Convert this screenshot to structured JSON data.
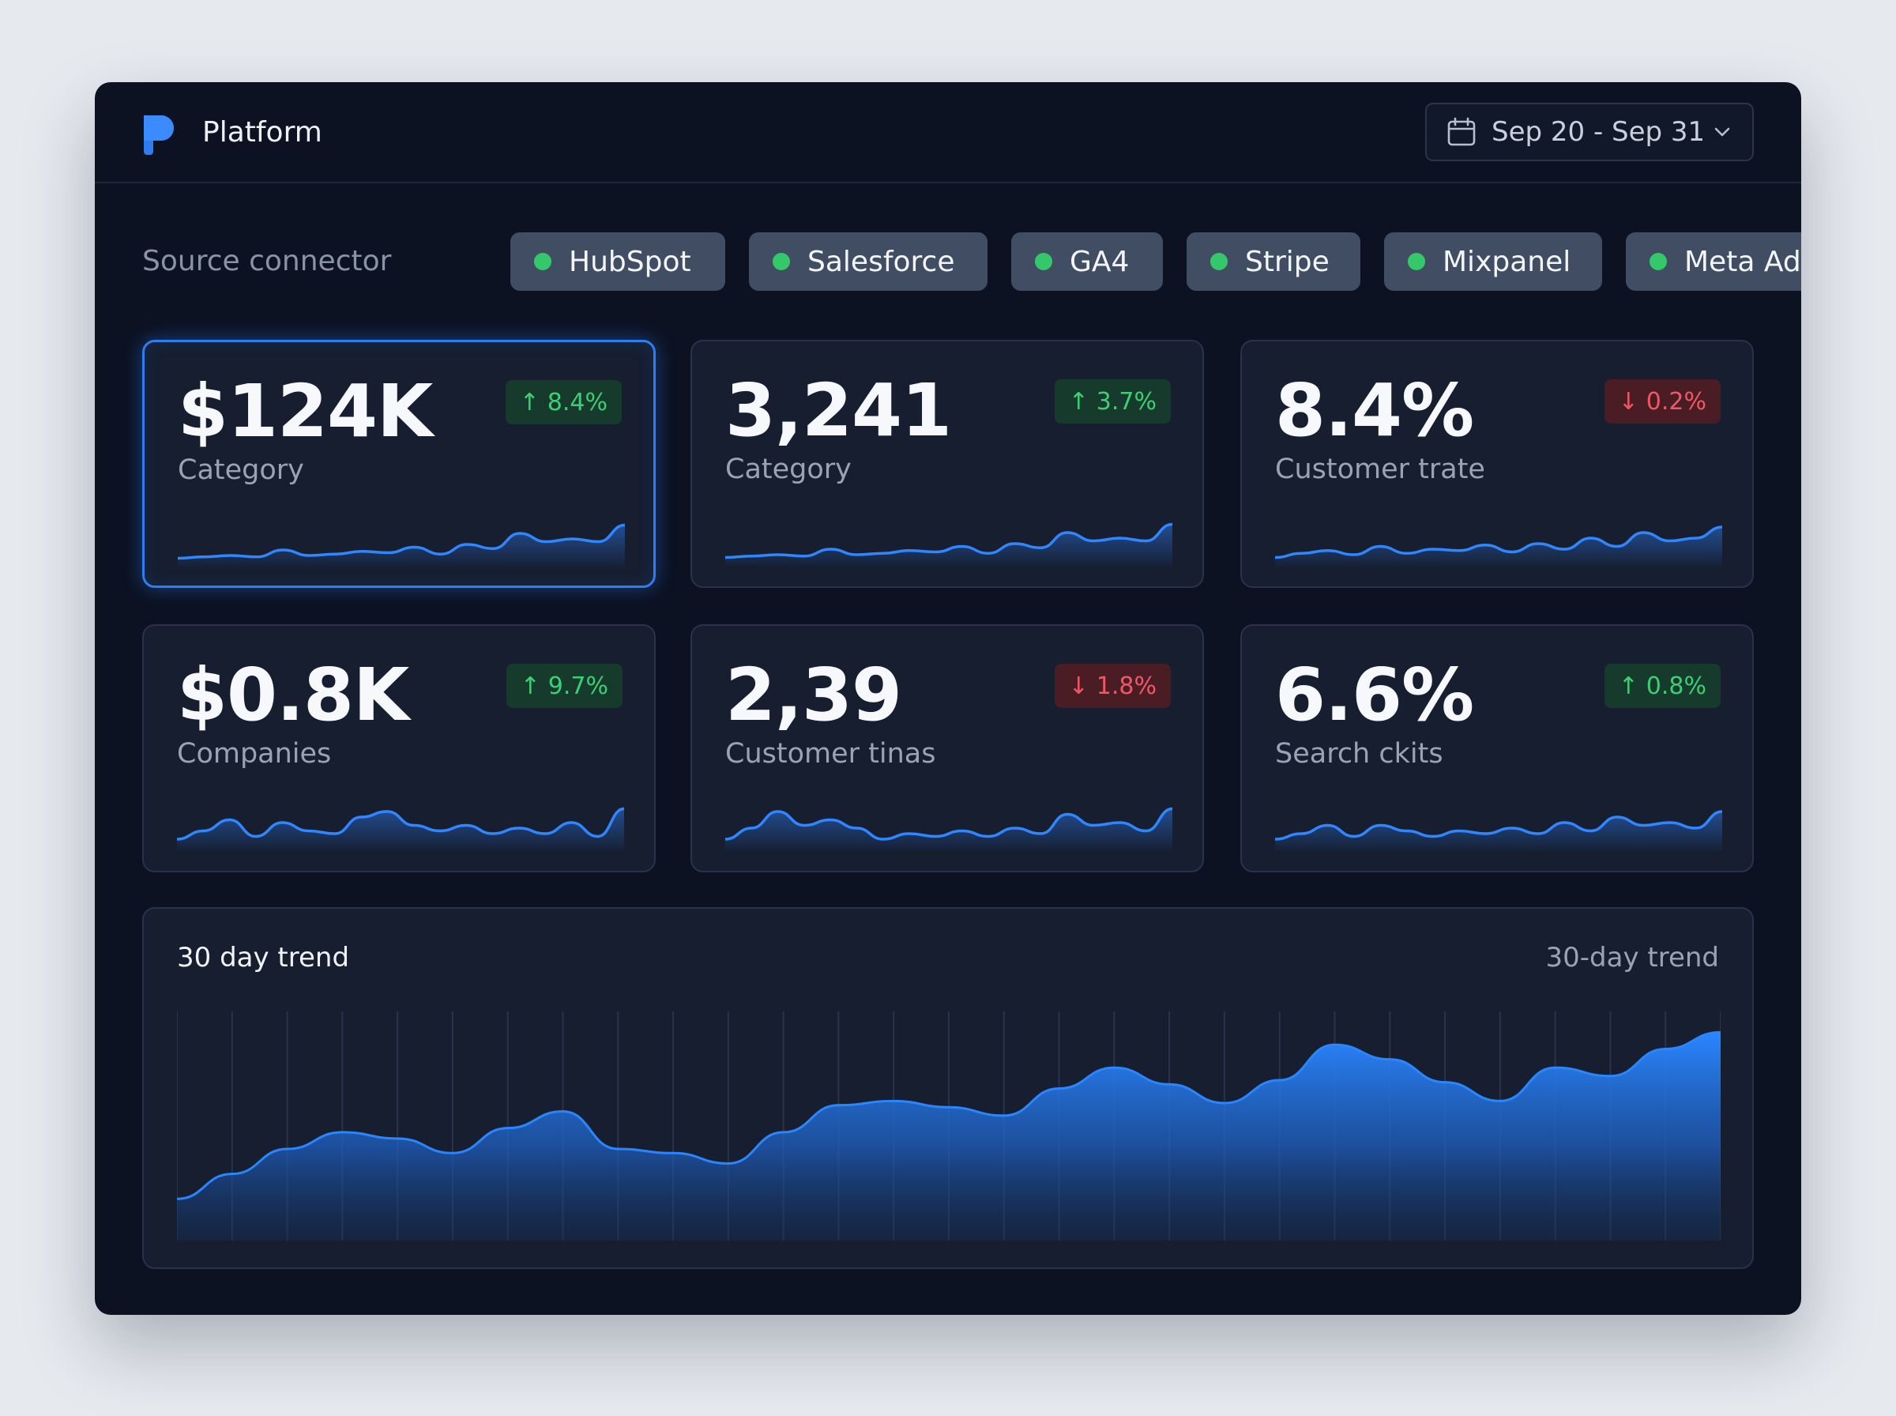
{
  "app": {
    "title": "Platform"
  },
  "date_range": {
    "label": "Sep 20 - Sep 31"
  },
  "connectors": {
    "label": "Source connector",
    "items": [
      {
        "name": "HubSpot",
        "status_color": "#35c86a"
      },
      {
        "name": "Salesforce",
        "status_color": "#35c86a"
      },
      {
        "name": "GA4",
        "status_color": "#35c86a"
      },
      {
        "name": "Stripe",
        "status_color": "#35c86a"
      },
      {
        "name": "Mixpanel",
        "status_color": "#35c86a"
      },
      {
        "name": "Meta Ads",
        "status_color": "#35c86a"
      }
    ]
  },
  "kpis": [
    {
      "value": "$124K",
      "label": "Category",
      "delta": "8.4%",
      "direction": "up",
      "selected": true,
      "spark": [
        6,
        7,
        8,
        7,
        12,
        8,
        9,
        11,
        10,
        14,
        9,
        16,
        13,
        24,
        18,
        20,
        18,
        30
      ]
    },
    {
      "value": "3,241",
      "label": "Category",
      "delta": "3.7%",
      "direction": "up",
      "selected": false,
      "spark": [
        6,
        7,
        8,
        7,
        12,
        8,
        9,
        11,
        10,
        14,
        9,
        16,
        13,
        24,
        18,
        20,
        18,
        30
      ]
    },
    {
      "value": "8.4%",
      "label": "Customer trate",
      "delta": "0.2%",
      "direction": "down",
      "selected": false,
      "spark": [
        6,
        9,
        11,
        8,
        14,
        9,
        12,
        11,
        15,
        10,
        16,
        12,
        20,
        14,
        24,
        18,
        20,
        28
      ]
    },
    {
      "value": "$0.8K",
      "label": "Companies",
      "delta": "9.7%",
      "direction": "up",
      "selected": false,
      "spark": [
        8,
        14,
        22,
        10,
        20,
        14,
        12,
        24,
        28,
        18,
        14,
        18,
        12,
        16,
        12,
        20,
        10,
        30
      ]
    },
    {
      "value": "2,39",
      "label": "Customer tinas",
      "delta": "1.8%",
      "direction": "down",
      "selected": false,
      "spark": [
        8,
        16,
        28,
        18,
        22,
        16,
        8,
        12,
        10,
        14,
        10,
        16,
        12,
        26,
        18,
        20,
        14,
        30
      ]
    },
    {
      "value": "6.6%",
      "label": "Search ckits",
      "delta": "0.8%",
      "direction": "up",
      "selected": false,
      "spark": [
        8,
        12,
        18,
        10,
        18,
        14,
        10,
        14,
        12,
        16,
        12,
        20,
        14,
        24,
        18,
        20,
        16,
        28
      ]
    }
  ],
  "trend": {
    "title": "30 day trend",
    "subtitle": "30-day trend"
  },
  "chart_data": {
    "type": "area",
    "title": "30 day trend",
    "x": [
      1,
      2,
      3,
      4,
      5,
      6,
      7,
      8,
      9,
      10,
      11,
      12,
      13,
      14,
      15,
      16,
      17,
      18,
      19,
      20,
      21,
      22,
      23,
      24,
      25,
      26,
      27,
      28,
      29
    ],
    "series": [
      {
        "values": [
          20,
          32,
          44,
          52,
          49,
          42,
          54,
          62,
          44,
          42,
          37,
          52,
          65,
          67,
          64,
          60,
          73,
          83,
          75,
          66,
          77,
          94,
          87,
          76,
          67,
          83,
          79,
          92,
          100
        ]
      }
    ],
    "ylim": [
      0,
      110
    ],
    "grid": true,
    "accent": "#2a86ff"
  },
  "colors": {
    "accent": "#2f7df3",
    "positive": "#3ccf74",
    "negative": "#f05866"
  },
  "icons": {
    "logo": "platform-logo",
    "date": "calendar-icon",
    "dropdown": "chevron-down-icon"
  }
}
